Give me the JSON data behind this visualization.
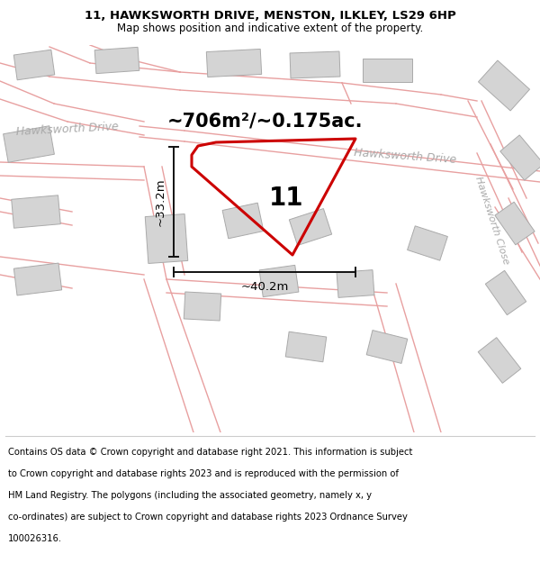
{
  "title_line1": "11, HAWKSWORTH DRIVE, MENSTON, ILKLEY, LS29 6HP",
  "title_line2": "Map shows position and indicative extent of the property.",
  "footer_lines": [
    "Contains OS data © Crown copyright and database right 2021. This information is subject",
    "to Crown copyright and database rights 2023 and is reproduced with the permission of",
    "HM Land Registry. The polygons (including the associated geometry, namely x, y",
    "co-ordinates) are subject to Crown copyright and database rights 2023 Ordnance Survey",
    "100026316."
  ],
  "area_label": "~706m²/~0.175ac.",
  "number_label": "11",
  "dim_vertical": "~33.2m",
  "dim_horizontal": "~40.2m",
  "map_bg": "#f2f2f2",
  "building_fill": "#d4d4d4",
  "building_edge": "#aaaaaa",
  "road_line_color": "#e8a0a0",
  "plot_line_color": "#cc0000",
  "dim_line_color": "#111111",
  "title_fontsize": 9.5,
  "subtitle_fontsize": 8.5,
  "footer_fontsize": 7.2,
  "area_fontsize": 15,
  "number_fontsize": 20,
  "dim_fontsize": 9.5,
  "road_label_color": "#aaaaaa",
  "road_label_fontsize": 9
}
